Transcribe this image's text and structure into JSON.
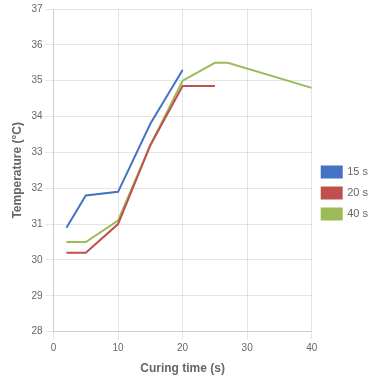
{
  "chart_data": {
    "type": "line",
    "xlabel": "Curing time (s)",
    "ylabel": "Temperature (°C)",
    "series": [
      {
        "name": "15 s",
        "color": "#4472C4",
        "x": [
          2,
          5,
          10,
          15,
          20
        ],
        "values": [
          30.9,
          31.8,
          31.9,
          33.8,
          35.3
        ]
      },
      {
        "name": "20 s",
        "color": "#C0504D",
        "x": [
          2,
          5,
          10,
          15,
          20,
          25
        ],
        "values": [
          30.2,
          30.2,
          31.0,
          33.2,
          34.85,
          34.85
        ]
      },
      {
        "name": "40 s",
        "color": "#9BBB59",
        "x": [
          2,
          5,
          10,
          15,
          20,
          25,
          27,
          40
        ],
        "values": [
          30.5,
          30.5,
          31.1,
          33.2,
          35.0,
          35.5,
          35.5,
          34.8
        ]
      }
    ],
    "xlim": [
      0,
      40
    ],
    "ylim": [
      28,
      37
    ],
    "xticks": [
      0,
      10,
      20,
      30,
      40
    ],
    "yticks": [
      28,
      29,
      30,
      31,
      32,
      33,
      34,
      35,
      36,
      37
    ],
    "grid": true,
    "legend": "center right"
  }
}
